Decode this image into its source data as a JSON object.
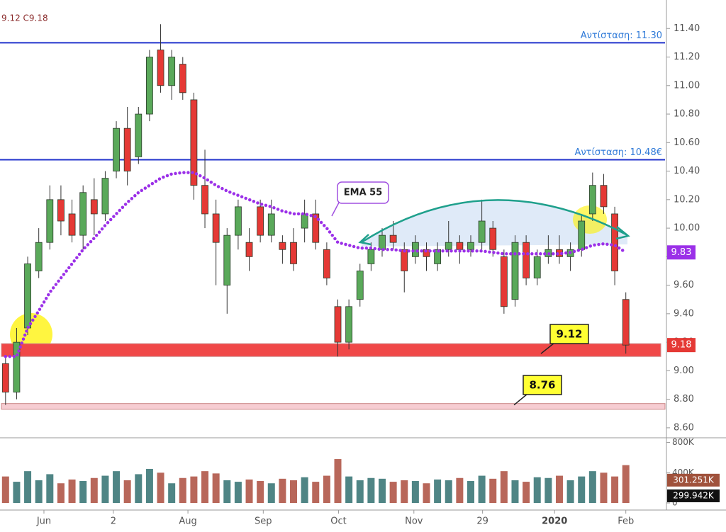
{
  "chart_data": [
    {
      "type": "candlestick",
      "legend_text": "9.12 C9.18",
      "x": [
        0,
        3,
        6,
        9,
        12,
        15,
        18,
        21,
        24,
        27,
        30,
        33,
        36,
        39,
        42,
        45,
        48,
        51,
        54,
        57,
        60,
        63,
        66,
        69,
        72,
        75,
        78,
        81,
        84,
        87,
        90,
        93,
        96,
        99,
        102,
        105,
        108,
        111,
        114,
        117,
        120,
        123,
        126,
        129,
        132,
        135,
        138,
        141,
        144,
        147,
        150,
        153,
        156,
        159,
        162,
        165,
        168
      ],
      "open": [
        9.05,
        8.85,
        9.3,
        9.7,
        9.9,
        10.2,
        10.1,
        9.95,
        10.2,
        10.1,
        10.4,
        10.7,
        10.5,
        10.8,
        11.25,
        11.0,
        11.15,
        10.9,
        10.3,
        10.1,
        9.6,
        9.95,
        9.9,
        10.15,
        9.95,
        9.9,
        9.9,
        10.0,
        10.1,
        9.85,
        9.45,
        9.2,
        9.5,
        9.75,
        9.85,
        9.95,
        9.85,
        9.8,
        9.85,
        9.75,
        9.85,
        9.9,
        9.85,
        9.9,
        10.0,
        9.8,
        9.5,
        9.9,
        9.65,
        9.8,
        9.85,
        9.8,
        9.85,
        10.1,
        10.3,
        10.1,
        9.5
      ],
      "high": [
        9.1,
        9.3,
        9.8,
        10.0,
        10.3,
        10.3,
        10.2,
        10.3,
        10.35,
        10.4,
        10.75,
        10.85,
        10.85,
        11.25,
        11.43,
        11.25,
        11.2,
        10.95,
        10.55,
        10.2,
        10.0,
        10.2,
        10.0,
        10.2,
        10.2,
        9.95,
        10.0,
        10.2,
        10.2,
        9.9,
        9.5,
        9.5,
        9.75,
        9.9,
        10.0,
        10.05,
        9.9,
        9.95,
        9.9,
        9.9,
        10.05,
        9.95,
        9.95,
        10.2,
        10.05,
        9.85,
        9.95,
        9.95,
        9.85,
        9.95,
        9.95,
        9.9,
        10.1,
        10.39,
        10.38,
        10.15,
        9.55
      ],
      "low": [
        8.76,
        8.8,
        9.25,
        9.65,
        9.85,
        9.95,
        9.9,
        9.85,
        9.95,
        10.05,
        10.35,
        10.3,
        10.45,
        10.75,
        10.95,
        10.9,
        10.9,
        10.2,
        10.0,
        9.6,
        9.4,
        9.85,
        9.7,
        9.9,
        9.9,
        9.75,
        9.7,
        9.9,
        9.85,
        9.6,
        9.1,
        9.15,
        9.45,
        9.7,
        9.8,
        9.85,
        9.55,
        9.75,
        9.7,
        9.7,
        9.8,
        9.75,
        9.8,
        9.85,
        9.8,
        9.4,
        9.45,
        9.6,
        9.6,
        9.75,
        9.75,
        9.7,
        9.8,
        10.05,
        10.1,
        9.6,
        9.12
      ],
      "close": [
        8.85,
        9.2,
        9.75,
        9.9,
        10.2,
        10.05,
        9.95,
        10.25,
        10.1,
        10.35,
        10.7,
        10.4,
        10.8,
        11.2,
        11.0,
        11.2,
        10.95,
        10.3,
        10.1,
        9.9,
        9.95,
        10.15,
        9.8,
        9.95,
        10.1,
        9.85,
        9.75,
        10.1,
        9.9,
        9.65,
        9.2,
        9.45,
        9.7,
        9.85,
        9.95,
        9.9,
        9.7,
        9.9,
        9.8,
        9.85,
        9.9,
        9.85,
        9.9,
        10.05,
        9.85,
        9.45,
        9.9,
        9.65,
        9.8,
        9.85,
        9.8,
        9.85,
        10.05,
        10.3,
        10.15,
        9.7,
        9.18
      ],
      "up_color": "#5aa95a",
      "down_color": "#e53935",
      "ema": {
        "name": "EMA 55",
        "color": "#9b30e8",
        "values": [
          9.1,
          9.1,
          9.3,
          9.42,
          9.55,
          9.65,
          9.75,
          9.85,
          9.93,
          10.02,
          10.1,
          10.18,
          10.25,
          10.3,
          10.35,
          10.38,
          10.39,
          10.39,
          10.35,
          10.3,
          10.26,
          10.23,
          10.2,
          10.17,
          10.15,
          10.12,
          10.1,
          10.1,
          10.08,
          10.0,
          9.9,
          9.88,
          9.86,
          9.86,
          9.85,
          9.85,
          9.84,
          9.84,
          9.84,
          9.84,
          9.84,
          9.84,
          9.84,
          9.84,
          9.83,
          9.82,
          9.82,
          9.82,
          9.82,
          9.82,
          9.82,
          9.83,
          9.85,
          9.88,
          9.89,
          9.88,
          9.83
        ]
      },
      "resistance": [
        {
          "label": "Αντίσταση: 11.30",
          "value": 11.3,
          "color": "#2233cc"
        },
        {
          "label": "Αντίσταση: 10.48€",
          "value": 10.48,
          "color": "#2233cc"
        }
      ],
      "support": [
        {
          "label": "9.12",
          "value": 9.12,
          "low": 9.1,
          "high": 9.19,
          "color": "#f04848"
        },
        {
          "label": "8.76",
          "value": 8.76,
          "low": 8.73,
          "high": 8.77,
          "color": "#f6cdd2"
        }
      ],
      "xlim": [
        -1.5,
        179
      ],
      "ylim": [
        8.52,
        11.6
      ],
      "yticks": [
        {
          "value": 8.6,
          "label": "8.60"
        },
        {
          "value": 8.8,
          "label": "8.80"
        },
        {
          "value": 9.0,
          "label": "9.00"
        },
        {
          "value": 9.2,
          "label": "9.20"
        },
        {
          "value": 9.4,
          "label": "9.40"
        },
        {
          "value": 9.6,
          "label": "9.60"
        },
        {
          "value": 9.8,
          "label": "9.80"
        },
        {
          "value": 10.0,
          "label": "10.00"
        },
        {
          "value": 10.2,
          "label": "10.20"
        },
        {
          "value": 10.4,
          "label": "10.40"
        },
        {
          "value": 10.6,
          "label": "10.60"
        },
        {
          "value": 10.8,
          "label": "10.80"
        },
        {
          "value": 11.0,
          "label": "11.00"
        },
        {
          "value": 11.2,
          "label": "11.20"
        },
        {
          "value": 11.4,
          "label": "11.40"
        }
      ],
      "xticks": [
        {
          "value": 10.4,
          "label": "Jun"
        },
        {
          "value": 29.2,
          "label": "2"
        },
        {
          "value": 49.4,
          "label": "Aug"
        },
        {
          "value": 69.8,
          "label": "Sep"
        },
        {
          "value": 90.2,
          "label": "Oct"
        },
        {
          "value": 110.6,
          "label": "Nov"
        },
        {
          "value": 129.2,
          "label": "29"
        },
        {
          "value": 148.7,
          "label": "2020"
        },
        {
          "value": 168,
          "label": "Feb"
        }
      ]
    },
    {
      "type": "bar",
      "values": [
        350000,
        280000,
        420000,
        300000,
        380000,
        260000,
        310000,
        290000,
        330000,
        360000,
        420000,
        300000,
        380000,
        450000,
        400000,
        260000,
        330000,
        350000,
        420000,
        390000,
        300000,
        280000,
        310000,
        290000,
        260000,
        320000,
        300000,
        340000,
        280000,
        360000,
        580000,
        350000,
        300000,
        330000,
        320000,
        280000,
        300000,
        290000,
        260000,
        310000,
        300000,
        330000,
        290000,
        360000,
        320000,
        420000,
        300000,
        280000,
        340000,
        330000,
        360000,
        300000,
        350000,
        420000,
        400000,
        350000,
        500000
      ],
      "up_color": "#4f8585",
      "down_color": "#b8675a",
      "ylim": [
        0,
        880000
      ],
      "yticks": [
        {
          "value": 0,
          "label": "0"
        },
        {
          "value": 400000,
          "label": "400K"
        },
        {
          "value": 800000,
          "label": "800K"
        }
      ],
      "value_tags": [
        {
          "value": 301251,
          "label": "301.251K",
          "color": "#a0523c"
        },
        {
          "value": 299942,
          "label": "299.942K",
          "color": "#111111"
        }
      ]
    }
  ]
}
